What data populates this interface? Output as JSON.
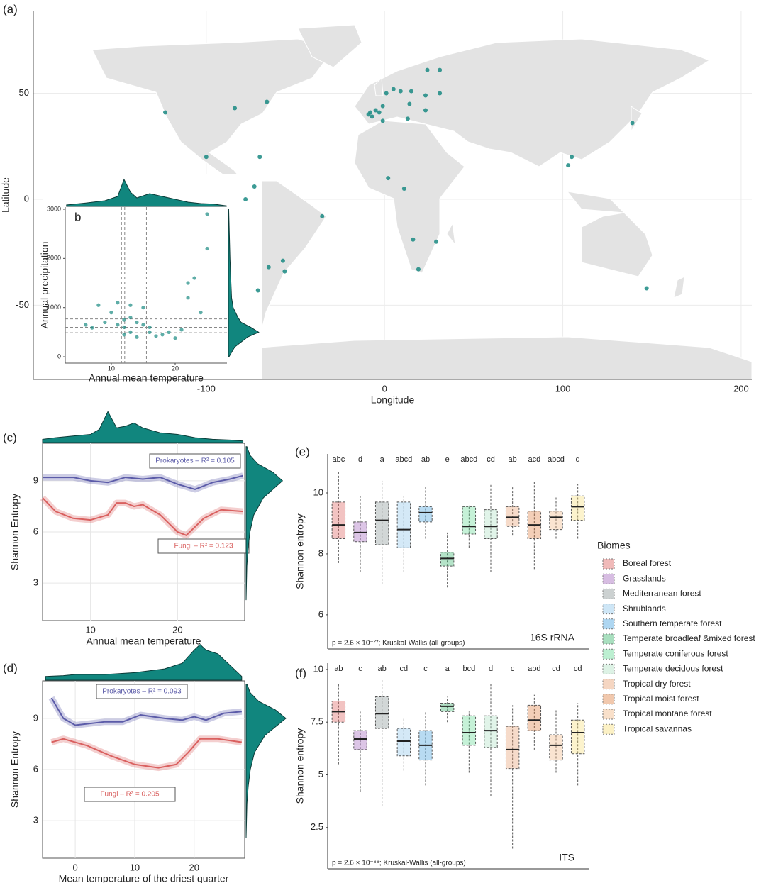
{
  "chart_data": [
    {
      "type": "map",
      "panel": "(a)",
      "x_label": "Longitude",
      "y_label": "Latitude",
      "xlim": [
        -197,
        206
      ],
      "ylim": [
        -85,
        89
      ],
      "xticks": [
        -100,
        0,
        100,
        200
      ],
      "yticks": [
        -50,
        0,
        50
      ],
      "grid": true,
      "color": "#1a8a82",
      "x": [
        -123,
        -84,
        -66,
        -100,
        -70,
        -73,
        -78,
        -65,
        -57,
        -56,
        -71,
        -35,
        -9,
        -5,
        -7,
        -1,
        1,
        5,
        9,
        15,
        23,
        31,
        24,
        31,
        14,
        13,
        23,
        -1,
        -3,
        -8,
        2,
        11,
        16,
        29,
        19,
        105,
        103,
        139,
        147
      ],
      "y": [
        41,
        43,
        46,
        20,
        20,
        6,
        0,
        -32,
        -29,
        -34,
        -43,
        -8,
        40,
        42,
        39,
        44,
        50,
        52,
        51,
        51,
        49,
        50,
        61,
        61,
        45,
        38,
        42,
        37,
        41,
        41,
        10,
        5,
        -19,
        -20,
        -33,
        20,
        16,
        36,
        -42
      ]
    },
    {
      "type": "scatter",
      "panel": "b",
      "x_label": "Annual mean temperature",
      "y_label": "Annual precipitation",
      "xlim": [
        2.8,
        28.1
      ],
      "ylim": [
        -129,
        3043
      ],
      "xticks": [
        10,
        20
      ],
      "yticks": [
        0,
        1000,
        2000,
        3000
      ],
      "color": "#1a8a82",
      "vlines": [
        11.6,
        12.1,
        15.5
      ],
      "hlines": [
        490,
        600,
        770
      ],
      "x": [
        6,
        7,
        8,
        9,
        10,
        11,
        11,
        12,
        12,
        12,
        13,
        13,
        13,
        14,
        14,
        15,
        15,
        16,
        16,
        17,
        18,
        19,
        20,
        21,
        22,
        22,
        23,
        24,
        25,
        25
      ],
      "y": [
        650,
        590,
        1050,
        700,
        900,
        650,
        1100,
        600,
        750,
        450,
        800,
        1050,
        500,
        700,
        400,
        650,
        1000,
        500,
        600,
        420,
        450,
        500,
        380,
        550,
        1500,
        1200,
        1600,
        900,
        2200,
        2900
      ],
      "density_x": {
        "x": [
          3,
          6,
          9,
          11,
          12,
          13,
          14,
          16,
          18,
          20,
          22,
          24,
          26,
          28
        ],
        "values": [
          0.05,
          0.12,
          0.2,
          0.35,
          0.95,
          0.5,
          0.3,
          0.45,
          0.35,
          0.25,
          0.15,
          0.1,
          0.08,
          0.02
        ]
      },
      "density_y": {
        "y": [
          0,
          200,
          400,
          500,
          600,
          700,
          800,
          1000,
          1200,
          1500,
          2000,
          2500,
          3000
        ],
        "values": [
          0.02,
          0.2,
          0.6,
          0.95,
          0.7,
          0.4,
          0.3,
          0.15,
          0.1,
          0.08,
          0.05,
          0.03,
          0.01
        ]
      }
    },
    {
      "type": "line",
      "panel": "(c)",
      "x_label": "Annual mean temperature",
      "y_label": "Shannon Entropy",
      "xlim": [
        4.5,
        27.7
      ],
      "ylim": [
        0.8,
        11.2
      ],
      "xticks": [
        10,
        20
      ],
      "yticks": [
        3,
        6,
        9
      ],
      "grid": true,
      "series": [
        {
          "name": "Prokaryotes – R² = 0.105",
          "color": "#5b5ba8",
          "x": [
            4.5,
            6,
            8,
            10,
            12,
            14,
            16,
            18,
            20,
            22,
            24,
            26,
            27.5
          ],
          "values": [
            9.2,
            9.2,
            9.2,
            9.0,
            8.9,
            9.2,
            9.1,
            9.2,
            8.8,
            8.5,
            8.9,
            9.1,
            9.3
          ]
        },
        {
          "name": "Fungi – R² = 0.123",
          "color": "#d9605f",
          "x": [
            4.5,
            6,
            8,
            10,
            12,
            13,
            14,
            15,
            16,
            18,
            20,
            21,
            23,
            25,
            27.5
          ],
          "values": [
            8.0,
            7.2,
            6.8,
            6.7,
            7.0,
            7.7,
            7.7,
            7.5,
            7.6,
            7.0,
            6.0,
            5.8,
            6.8,
            7.3,
            7.2
          ]
        }
      ],
      "density_x": {
        "x": [
          4.5,
          6,
          8,
          10,
          11,
          12,
          13,
          14,
          15,
          16,
          18,
          20,
          22,
          24,
          26,
          27.5
        ],
        "values": [
          0.1,
          0.15,
          0.2,
          0.25,
          0.4,
          0.95,
          0.45,
          0.5,
          0.6,
          0.45,
          0.3,
          0.25,
          0.15,
          0.1,
          0.08,
          0.05
        ]
      },
      "density_y": {
        "y": [
          2,
          4,
          5,
          6,
          7,
          8,
          8.5,
          9,
          9.5,
          10,
          10.5,
          11
        ],
        "values": [
          0.0,
          0.02,
          0.05,
          0.1,
          0.2,
          0.45,
          0.7,
          0.95,
          0.7,
          0.3,
          0.1,
          0.02
        ]
      }
    },
    {
      "type": "line",
      "panel": "(d)",
      "x_label": "Mean temperature of the driest quarter",
      "y_label": "Shannon Entropy",
      "xlim": [
        -5.5,
        28.5
      ],
      "ylim": [
        0.8,
        11.2
      ],
      "xticks": [
        0,
        10,
        20
      ],
      "yticks": [
        3,
        6,
        9
      ],
      "grid": true,
      "series": [
        {
          "name": "Prokaryotes – R² = 0.093",
          "color": "#5b5ba8",
          "x": [
            -4,
            -2,
            0,
            5,
            8,
            11,
            15,
            18,
            20,
            22,
            25,
            28
          ],
          "values": [
            10.2,
            9.0,
            8.6,
            8.8,
            8.8,
            9.2,
            9.0,
            8.9,
            9.1,
            8.9,
            9.3,
            9.4
          ]
        },
        {
          "name": "Fungi – R² = 0.205",
          "color": "#d9605f",
          "x": [
            -4,
            -2,
            2,
            6,
            10,
            14,
            17,
            19,
            21,
            24,
            28
          ],
          "values": [
            7.6,
            7.8,
            7.4,
            6.8,
            6.3,
            6.1,
            6.3,
            7.0,
            7.8,
            7.8,
            7.6
          ]
        }
      ],
      "density_x": {
        "x": [
          -5,
          -2,
          0,
          5,
          10,
          15,
          18,
          20,
          21,
          22,
          24,
          26,
          28
        ],
        "values": [
          0.1,
          0.12,
          0.15,
          0.15,
          0.2,
          0.3,
          0.45,
          0.8,
          0.95,
          0.8,
          0.7,
          0.4,
          0.1
        ]
      },
      "density_y": {
        "y": [
          2,
          4,
          5,
          6,
          7,
          8,
          8.5,
          9,
          9.5,
          10,
          10.5,
          11
        ],
        "values": [
          0.0,
          0.02,
          0.05,
          0.1,
          0.2,
          0.45,
          0.7,
          0.95,
          0.7,
          0.3,
          0.1,
          0.02
        ]
      }
    },
    {
      "type": "box",
      "panel": "(e)",
      "y_label": "Shannon entropy",
      "label": "16S rRNA",
      "annotation": "p = 2.6 × 10⁻²⁷; Kruskal-Wallis (all-groups)",
      "legend_title": "Biomes",
      "categories": [
        "Boreal forest",
        "Grasslands",
        "Mediterranean forest",
        "Shrublands",
        "Southern temperate forest",
        "Temperate broadleaf &mixed forest",
        "Temperate coniferous forest",
        "Temperate decidous forest",
        "Tropical dry forest",
        "Tropical moist forest",
        "Tropical montane forest",
        "Tropical savannas"
      ],
      "colors": [
        "#d9534f",
        "#9b59b6",
        "#7f8c8d",
        "#85c1e9",
        "#3498db",
        "#27ae60",
        "#58d68d",
        "#a9dfbf",
        "#e59866",
        "#dc7633",
        "#f0b27a",
        "#f7dc6f"
      ],
      "ylim": [
        4.88,
        11.28
      ],
      "yticks": [
        6,
        8,
        10
      ],
      "letters": [
        "abc",
        "d",
        "a",
        "abcd",
        "ab",
        "e",
        "abcd",
        "cd",
        "ab",
        "acd",
        "abcd",
        "d"
      ],
      "q1": [
        8.5,
        8.4,
        8.3,
        8.2,
        9.05,
        7.6,
        8.65,
        8.5,
        8.9,
        8.5,
        8.8,
        9.1
      ],
      "median": [
        8.95,
        8.7,
        9.1,
        8.8,
        9.35,
        7.85,
        8.9,
        8.9,
        9.2,
        8.95,
        9.2,
        9.55
      ],
      "q3": [
        9.7,
        9.05,
        9.7,
        9.7,
        9.55,
        8.05,
        9.55,
        9.45,
        9.55,
        9.4,
        9.4,
        9.9
      ],
      "whisker_low": [
        7.7,
        7.4,
        7.0,
        7.4,
        8.5,
        6.9,
        8.2,
        7.4,
        8.6,
        7.5,
        8.5,
        8.5
      ],
      "whisker_high": [
        10.7,
        9.9,
        10.4,
        9.9,
        10.2,
        8.7,
        9.6,
        10.3,
        10.2,
        10.4,
        9.9,
        10.3
      ]
    },
    {
      "type": "box",
      "panel": "(f)",
      "y_label": "Shannon entropy",
      "label": "ITS",
      "annotation": "p = 2.6 × 10⁻⁶⁶; Kruskal-Wallis (all-groups)",
      "ylim": [
        0.54,
        10.3
      ],
      "yticks": [
        2.5,
        5,
        7.5,
        10
      ],
      "letters": [
        "ab",
        "c",
        "ab",
        "cd",
        "c",
        "a",
        "bcd",
        "d",
        "c",
        "abd",
        "cd",
        "cd"
      ],
      "q1": [
        7.5,
        6.2,
        7.2,
        5.9,
        5.7,
        8.0,
        6.4,
        6.3,
        5.3,
        7.1,
        5.7,
        6.0
      ],
      "median": [
        8.0,
        6.7,
        7.9,
        6.6,
        6.4,
        8.25,
        7.0,
        7.1,
        6.2,
        7.6,
        6.4,
        7.0
      ],
      "q3": [
        8.5,
        7.1,
        8.7,
        7.2,
        7.1,
        8.4,
        7.8,
        7.8,
        7.3,
        8.3,
        6.9,
        7.6
      ],
      "whisker_low": [
        5.5,
        4.2,
        3.5,
        5.2,
        4.5,
        7.5,
        5.1,
        4.0,
        1.5,
        6.2,
        5.1,
        4.5
      ],
      "whisker_high": [
        9.3,
        8.0,
        9.5,
        7.7,
        8.0,
        8.7,
        8.0,
        9.3,
        8.3,
        8.8,
        8.1,
        8.4
      ]
    }
  ]
}
